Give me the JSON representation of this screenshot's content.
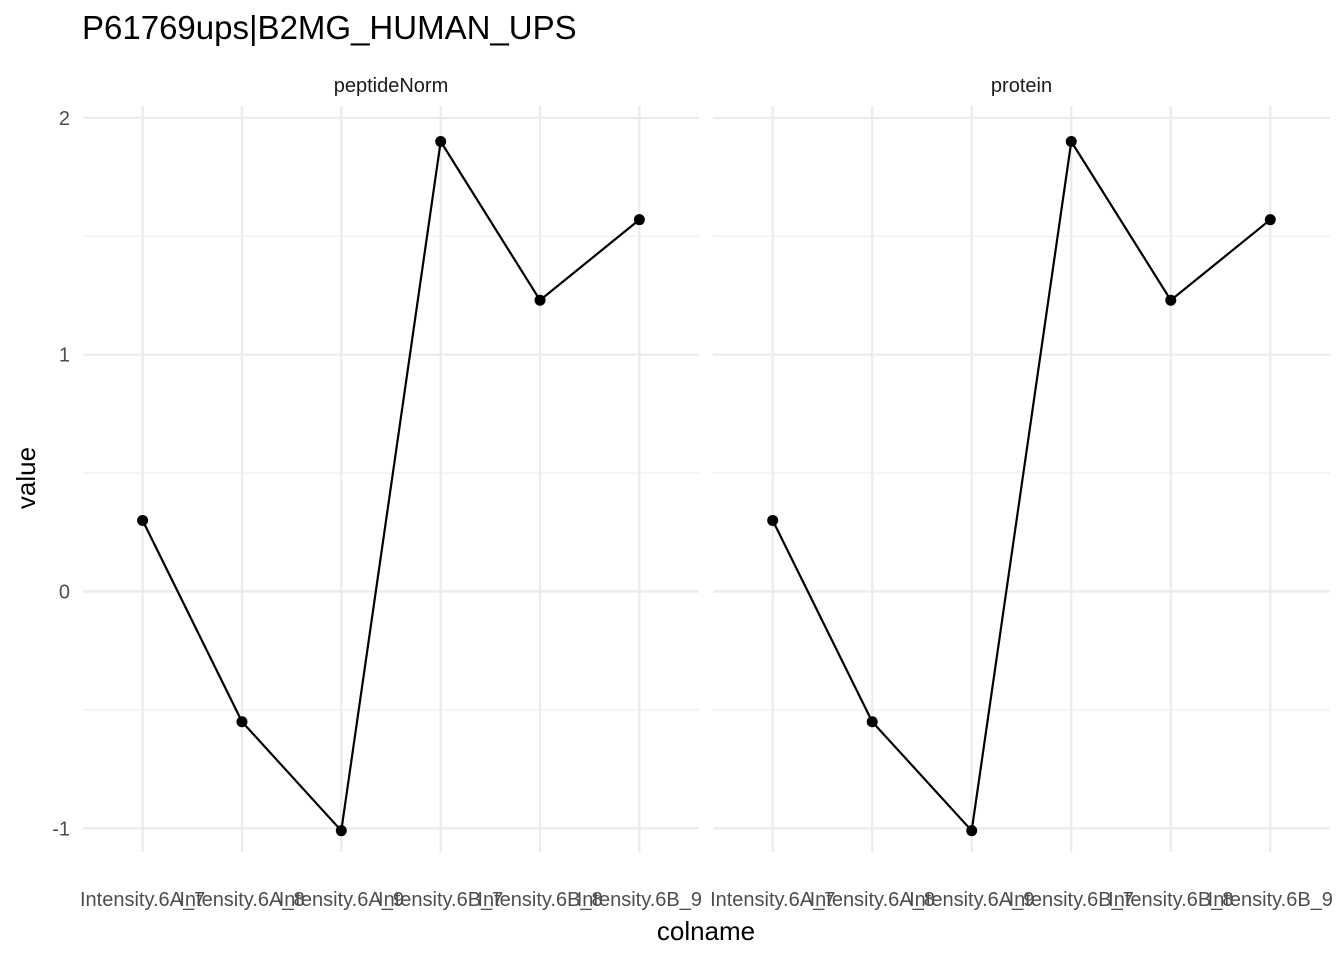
{
  "chart_data": {
    "type": "line",
    "title": "P61769ups|B2MG_HUMAN_UPS",
    "xlabel": "colname",
    "ylabel": "value",
    "categories": [
      "Intensity.6A_7",
      "Intensity.6A_8",
      "Intensity.6A_9",
      "Intensity.6B_7",
      "Intensity.6B_8",
      "Intensity.6B_9"
    ],
    "ylim": [
      -1.1,
      2.05
    ],
    "yticks": [
      -1,
      0,
      1,
      2
    ],
    "ytick_labels": [
      "-1",
      "0",
      "1",
      "2"
    ],
    "grid": true,
    "facets": [
      {
        "label": "peptideNorm",
        "values": [
          0.3,
          -0.55,
          -1.01,
          1.9,
          1.23,
          1.57
        ]
      },
      {
        "label": "protein",
        "values": [
          0.3,
          -0.55,
          -1.01,
          1.9,
          1.23,
          1.57
        ]
      }
    ]
  }
}
